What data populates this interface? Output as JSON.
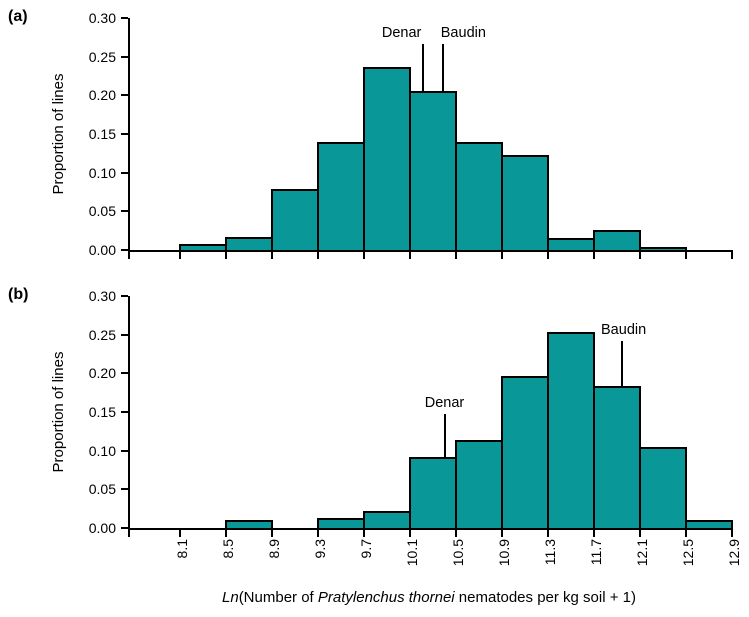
{
  "figure": {
    "x_axis_label_parts": [
      {
        "text": "Ln",
        "italic": true
      },
      {
        "text": "(Number of ",
        "italic": false
      },
      {
        "text": "Pratylenchus thornei",
        "italic": true
      },
      {
        "text": " nematodes per kg soil + 1)",
        "italic": false
      }
    ]
  },
  "chart_data": [
    {
      "id": "a",
      "type": "bar",
      "panel_label": "(a)",
      "ylabel": "Proportion of lines",
      "xlabel": "Ln(Number of Pratylenchus thornei nematodes per kg soil + 1)",
      "ylim": [
        0,
        0.3
      ],
      "grid": false,
      "legend": "none",
      "bin_edges": [
        8.1,
        8.5,
        8.9,
        9.3,
        9.7,
        10.1,
        10.5,
        10.9,
        11.3,
        11.7,
        12.1,
        12.5,
        12.9
      ],
      "x_tick_labels": [
        "8.1",
        "8.5",
        "8.9",
        "9.3",
        "9.7",
        "10.1",
        "10.5",
        "10.9",
        "11.3",
        "11.7",
        "12.1",
        "12.5",
        "12.9"
      ],
      "y_tick_labels": [
        "0.00",
        "0.05",
        "0.10",
        "0.15",
        "0.20",
        "0.25",
        "0.30"
      ],
      "values": [
        0.008,
        0.017,
        0.079,
        0.14,
        0.237,
        0.206,
        0.14,
        0.123,
        0.016,
        0.026,
        0.004,
        0.0
      ],
      "show_x_tick_labels": false,
      "bar_color": "#0a9798",
      "bar_border_color": "#000000",
      "annotations": [
        {
          "text": "Denar",
          "x": 10.21,
          "bar_value": 0.206,
          "line_top_value": 0.267,
          "label_dx": -21
        },
        {
          "text": "Baudin",
          "x": 10.39,
          "bar_value": 0.206,
          "line_top_value": 0.267,
          "label_dx": 20
        }
      ]
    },
    {
      "id": "b",
      "type": "bar",
      "panel_label": "(b)",
      "ylabel": "Proportion of lines",
      "xlabel": "Ln(Number of Pratylenchus thornei nematodes per kg soil + 1)",
      "ylim": [
        0,
        0.3
      ],
      "grid": false,
      "legend": "none",
      "bin_edges": [
        8.1,
        8.5,
        8.9,
        9.3,
        9.7,
        10.1,
        10.5,
        10.9,
        11.3,
        11.7,
        12.1,
        12.5,
        12.9
      ],
      "x_tick_labels": [
        "8.1",
        "8.5",
        "8.9",
        "9.3",
        "9.7",
        "10.1",
        "10.5",
        "10.9",
        "11.3",
        "11.7",
        "12.1",
        "12.5",
        "12.9"
      ],
      "y_tick_labels": [
        "0.00",
        "0.05",
        "0.10",
        "0.15",
        "0.20",
        "0.25",
        "0.30"
      ],
      "values": [
        0.0,
        0.01,
        0.0,
        0.013,
        0.022,
        0.092,
        0.114,
        0.197,
        0.254,
        0.184,
        0.105,
        0.01
      ],
      "show_x_tick_labels": true,
      "bar_color": "#0a9798",
      "bar_border_color": "#000000",
      "annotations": [
        {
          "text": "Denar",
          "x": 10.4,
          "bar_value": 0.092,
          "line_top_value": 0.147,
          "label_dx": 0
        },
        {
          "text": "Baudin",
          "x": 11.94,
          "bar_value": 0.184,
          "line_top_value": 0.242,
          "label_dx": 2
        }
      ]
    }
  ]
}
